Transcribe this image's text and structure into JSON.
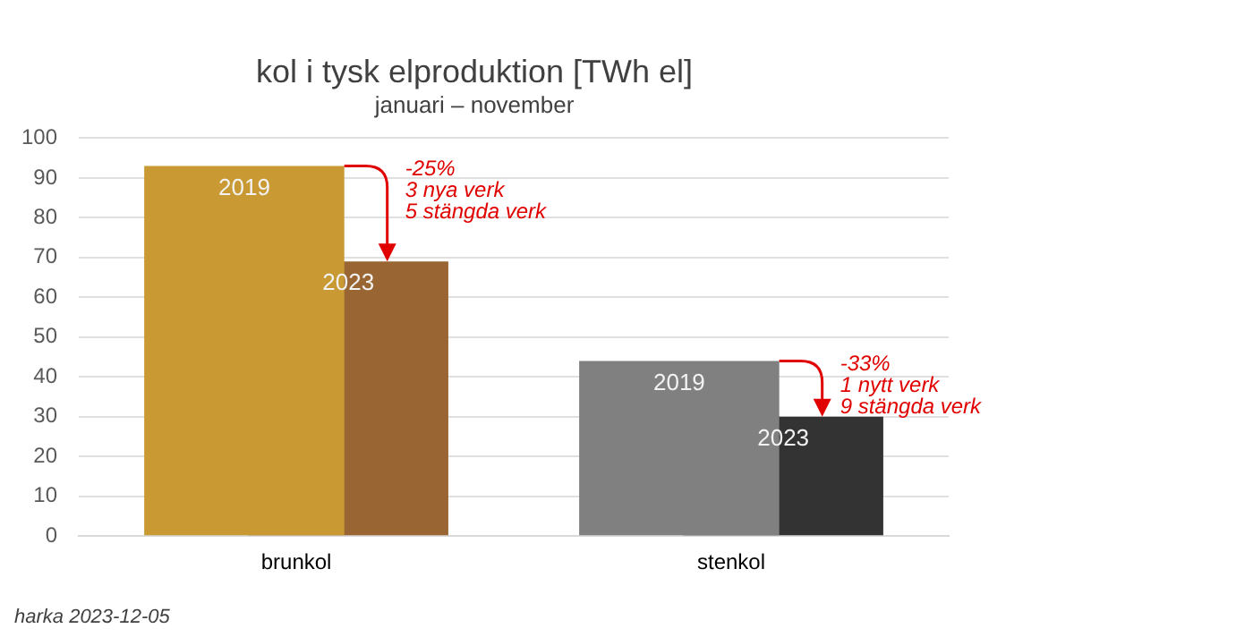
{
  "chart_data": {
    "type": "bar",
    "title": "kol i tysk elproduktion [TWh el]",
    "subtitle": "januari – november",
    "categories": [
      "brunkol",
      "stenkol"
    ],
    "series": [
      {
        "name": "2019",
        "colors": [
          "#c99a33",
          "#808080"
        ],
        "values": [
          93,
          44
        ]
      },
      {
        "name": "2023",
        "colors": [
          "#996633",
          "#333333"
        ],
        "values": [
          69,
          30
        ]
      }
    ],
    "ylim": [
      0,
      100
    ],
    "yticks": [
      0,
      10,
      20,
      30,
      40,
      50,
      60,
      70,
      80,
      90,
      100
    ],
    "grid": "y",
    "legend": false,
    "annotations": [
      "-25%\n3 nya verk\n5 stängda verk",
      "-33%\n1 nytt verk\n9 stängda verk",
      "harka 2023-12-05"
    ]
  }
}
